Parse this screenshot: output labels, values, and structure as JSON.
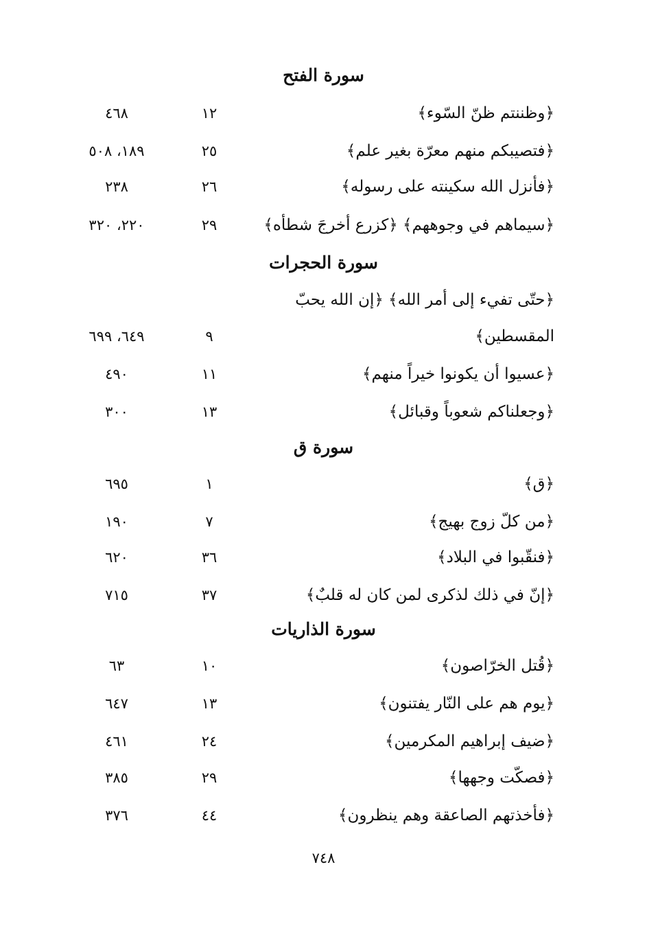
{
  "sections": [
    {
      "title": "سورة الفتح",
      "entries": [
        {
          "text": "﴿وظننتم ظنّ السّوء﴾",
          "ayah": "١٢",
          "pages": "٤٦٨"
        },
        {
          "text": "﴿فتصيبكم منهم معرّة بغير علم﴾",
          "ayah": "٢٥",
          "pages": "١٨٩، ٥٠٨"
        },
        {
          "text": "﴿فأنزل الله سكينته على رسوله﴾",
          "ayah": "٢٦",
          "pages": "٢٣٨"
        },
        {
          "text": "﴿سيماهم في وجوههم﴾ ﴿كزرع أخرجَ شطأه﴾",
          "ayah": "٢٩",
          "pages": "٢٢٠، ٣٢٠"
        }
      ]
    },
    {
      "title": "سورة الحجرات",
      "entries": [
        {
          "text": "﴿حتّى تفيء إلى أمر الله﴾ ﴿إن الله يحبّ",
          "ayah": "",
          "pages": ""
        },
        {
          "text": "المقسطين﴾",
          "ayah": "٩",
          "pages": "٦٤٩، ٦٩٩"
        },
        {
          "text": "﴿عسيوا أن يكونوا خيراً منهم﴾",
          "ayah": "١١",
          "pages": "٤٩٠"
        },
        {
          "text": "﴿وجعلناكم شعوباً وقبائل﴾",
          "ayah": "١٣",
          "pages": "٣٠٠"
        }
      ]
    },
    {
      "title": "سورة ق",
      "entries": [
        {
          "text": "﴿ق﴾",
          "ayah": "١",
          "pages": "٦٩٥"
        },
        {
          "text": "﴿من كلّ زوج بهيج﴾",
          "ayah": "٧",
          "pages": "١٩٠"
        },
        {
          "text": "﴿فنقّبوا في البلاد﴾",
          "ayah": "٣٦",
          "pages": "٦٢٠"
        },
        {
          "text": "﴿إنّ في ذلك لذكرى لمن كان له قلبٌ﴾",
          "ayah": "٣٧",
          "pages": "٧١٥"
        }
      ]
    },
    {
      "title": "سورة الذاريات",
      "entries": [
        {
          "text": "﴿قُتل الخرّاصون﴾",
          "ayah": "١٠",
          "pages": "٦٣"
        },
        {
          "text": "﴿يوم هم على النّار يفتنون﴾",
          "ayah": "١٣",
          "pages": "٦٤٧"
        },
        {
          "text": "﴿ضيف إبراهيم المكرمين﴾",
          "ayah": "٢٤",
          "pages": "٤٦١"
        },
        {
          "text": "﴿فصكّت وجهها﴾",
          "ayah": "٢٩",
          "pages": "٣٨٥"
        },
        {
          "text": "﴿فأخذتهم الصاعقة وهم ينظرون﴾",
          "ayah": "٤٤",
          "pages": "٣٧٦"
        }
      ]
    }
  ],
  "page_number": "٧٤٨"
}
